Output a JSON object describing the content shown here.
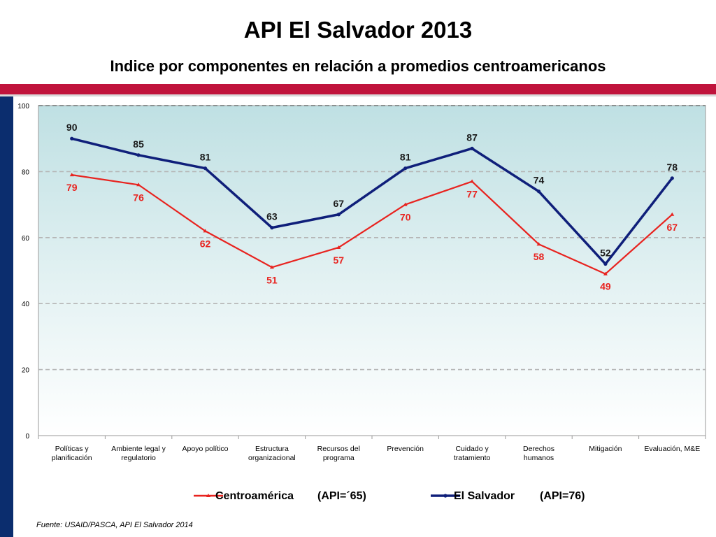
{
  "header": {
    "title": "API El Salvador 2013",
    "subtitle": "Indice por componentes en relación a promedios centroamericanos"
  },
  "api_labels": {
    "centroamerica": "(API=´65)",
    "el_salvador": "(API=76)"
  },
  "source": "Fuente: USAID/PASCA, API  El Salvador 2014",
  "colors": {
    "brand_red": "#c0143c",
    "brand_navy": "#0b2d6e",
    "series_red": "#e8231f",
    "series_navy": "#0f1f7a"
  },
  "chart_data": {
    "type": "line",
    "categories": [
      [
        "Políticas y",
        "planificación"
      ],
      [
        "Ambiente legal y",
        "regulatorio"
      ],
      [
        "Apoyo político"
      ],
      [
        "Estructura",
        "organizacional"
      ],
      [
        "Recursos del",
        "programa"
      ],
      [
        "Prevención"
      ],
      [
        "Cuidado y",
        "tratamiento"
      ],
      [
        "Derechos",
        "humanos"
      ],
      [
        "Mitigación"
      ],
      [
        "Evaluación, M&E"
      ]
    ],
    "series": [
      {
        "name": "Centroamérica",
        "color": "#e8231f",
        "values": [
          79,
          76,
          62,
          51,
          57,
          70,
          77,
          58,
          49,
          67
        ]
      },
      {
        "name": "El Salvador",
        "color": "#0f1f7a",
        "values": [
          90,
          85,
          81,
          63,
          67,
          81,
          87,
          74,
          52,
          78
        ]
      }
    ],
    "ylim": [
      0,
      100
    ],
    "yticks": [
      0,
      20,
      40,
      60,
      80,
      100
    ],
    "grid": true,
    "legend": "bottom"
  }
}
